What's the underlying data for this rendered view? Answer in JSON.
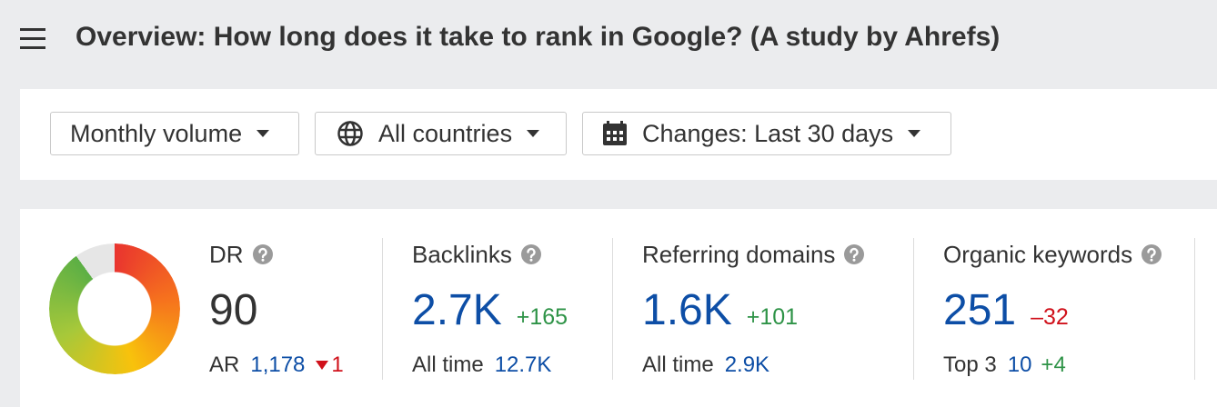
{
  "header": {
    "title": "Overview: How long does it take to rank in Google? (A study by Ahrefs)"
  },
  "filters": [
    "Monthly volume",
    "All countries",
    "Changes: Last 30 days"
  ],
  "metrics": [
    {
      "label": "DR",
      "value": 90,
      "sub_label": "AR",
      "sub_value": "1,178",
      "sub_change": "1"
    },
    {
      "label": "Backlinks",
      "value": "2.7K",
      "change": "+165",
      "sub_label": "All time",
      "sub_value": "12.7K"
    },
    {
      "label": "Referring domains",
      "value": "1.6K",
      "change": "+101",
      "sub_label": "All time",
      "sub_value": "2.9K"
    },
    {
      "label": "Organic keywords",
      "value": "251",
      "change": "–32",
      "sub_label": "Top 3",
      "sub_value": "10",
      "sub_change": "+4"
    }
  ]
}
